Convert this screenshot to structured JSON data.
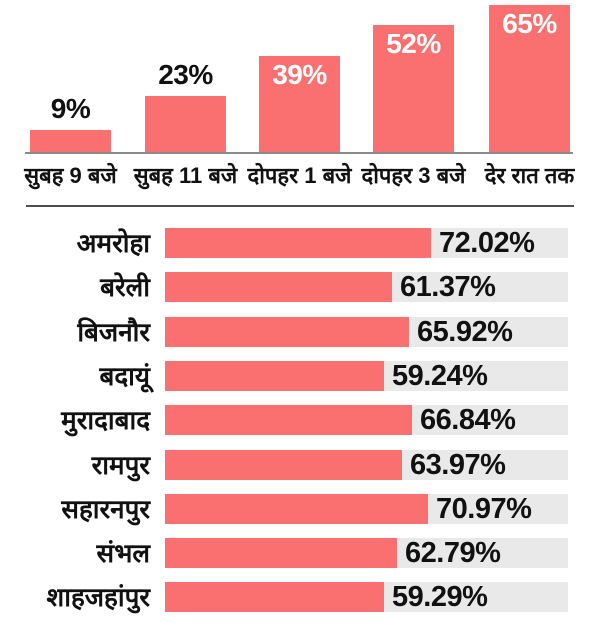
{
  "colors": {
    "background": "#ffffff",
    "bar": "#fa6f6f",
    "track": "#e9e9e9",
    "axis_line": "#8b8b8b",
    "divider": "#4d4d4d",
    "text_dark": "#111111",
    "text_light": "#ffffff"
  },
  "chart_data": [
    {
      "type": "bar",
      "orientation": "vertical",
      "title": "",
      "categories": [
        "सुबह 9 बजे",
        "सुबह 11 बजे",
        "दोपहर 1 बजे",
        "दोपहर 3 बजे",
        "देर रात तक"
      ],
      "values": [
        9,
        23,
        39,
        52,
        65
      ],
      "value_labels": [
        "9%",
        "23%",
        "39%",
        "52%",
        "65%"
      ],
      "value_label_placement": [
        "above",
        "above",
        "inside",
        "inside",
        "inside"
      ],
      "ylim": [
        0,
        65
      ],
      "grid": false,
      "legend": "none"
    },
    {
      "type": "bar",
      "orientation": "horizontal",
      "title": "",
      "categories": [
        "अमरोहा",
        "बरेली",
        "बिजनौर",
        "बदायूं",
        "मुरादाबाद",
        "रामपुर",
        "सहारनपुर",
        "संभल",
        "शाहजहांपुर"
      ],
      "values": [
        72.02,
        61.37,
        65.92,
        59.24,
        66.84,
        63.97,
        70.97,
        62.79,
        59.29
      ],
      "value_labels": [
        "72.02%",
        "61.37%",
        "65.92%",
        "59.24%",
        "66.84%",
        "63.97%",
        "70.97%",
        "62.79%",
        "59.29%"
      ],
      "xlim": [
        0,
        109
      ],
      "grid": false,
      "legend": "none"
    }
  ]
}
